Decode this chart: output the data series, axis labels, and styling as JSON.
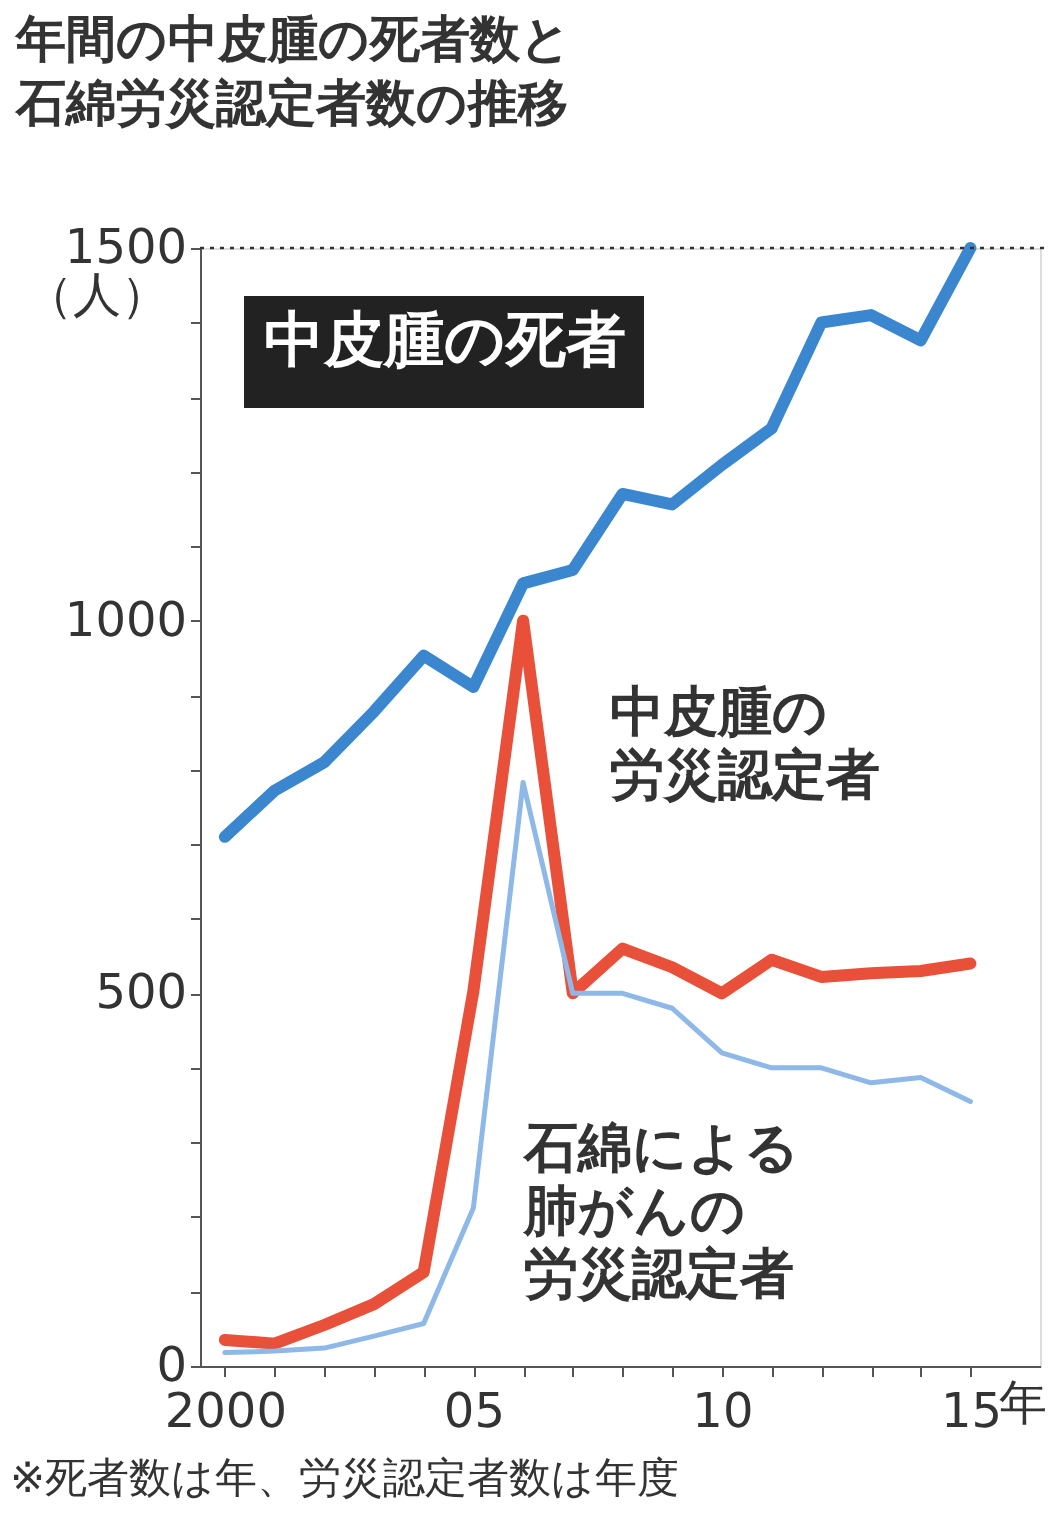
{
  "chart_data": {
    "type": "line",
    "title": "年間の中皮腫の死者数と石綿労災認定者数の推移",
    "ylabel": "（人）",
    "x": [
      2000,
      2001,
      2002,
      2003,
      2004,
      2005,
      2006,
      2007,
      2008,
      2009,
      2010,
      2011,
      2012,
      2013,
      2014,
      2015
    ],
    "series": [
      {
        "name": "中皮腫の死者",
        "color": "#3a87cf",
        "values": [
          710,
          772,
          810,
          878,
          953,
          911,
          1050,
          1068,
          1170,
          1156,
          1209,
          1258,
          1400,
          1410,
          1376,
          1500
        ]
      },
      {
        "name": "中皮腫の労災認定者",
        "color": "#e8503a",
        "values": [
          35,
          30,
          55,
          83,
          126,
          503,
          1000,
          500,
          560,
          535,
          500,
          545,
          522,
          527,
          530,
          540
        ]
      },
      {
        "name": "石綿による肺がんの労災認定者",
        "color": "#8db8e8",
        "values": [
          18,
          20,
          24,
          40,
          57,
          212,
          783,
          500,
          500,
          480,
          420,
          400,
          400,
          380,
          387,
          355
        ]
      }
    ],
    "xlim": [
      1999.5,
      2016.4
    ],
    "xticks": [
      2000,
      {
        "value": 2001,
        "label": null
      },
      {
        "value": 2002,
        "label": null
      },
      {
        "value": 2003,
        "label": null
      },
      {
        "value": 2004,
        "label": null
      },
      {
        "value": 2005,
        "label": "05"
      },
      {
        "value": 2006,
        "label": null
      },
      {
        "value": 2007,
        "label": null
      },
      {
        "value": 2008,
        "label": null
      },
      {
        "value": 2009,
        "label": null
      },
      {
        "value": 2010,
        "label": "10"
      },
      {
        "value": 2011,
        "label": null
      },
      {
        "value": 2012,
        "label": null
      },
      {
        "value": 2013,
        "label": null
      },
      {
        "value": 2014,
        "label": null
      },
      {
        "value": 2015,
        "label": "15"
      }
    ],
    "xlabel": "年",
    "ylim": [
      0,
      1500
    ],
    "yticks": [
      0,
      {
        "value": 100,
        "label": null
      },
      {
        "value": 200,
        "label": null
      },
      {
        "value": 300,
        "label": null
      },
      {
        "value": 400,
        "label": null
      },
      500,
      {
        "value": 600,
        "label": null
      },
      {
        "value": 700,
        "label": null
      },
      {
        "value": 800,
        "label": null
      },
      {
        "value": 900,
        "label": null
      },
      1000,
      {
        "value": 1100,
        "label": null
      },
      {
        "value": 1200,
        "label": null
      },
      {
        "value": 1300,
        "label": null
      },
      {
        "value": 1400,
        "label": null
      },
      1500
    ],
    "ref_lines": [
      {
        "axis": "y",
        "value": 1500,
        "line_style": "dotted",
        "color": "#333333"
      }
    ],
    "annotations": [
      "※死者数は年、労災認定者数は年度"
    ],
    "grid": false,
    "marker": "none",
    "line_style": "solid"
  }
}
